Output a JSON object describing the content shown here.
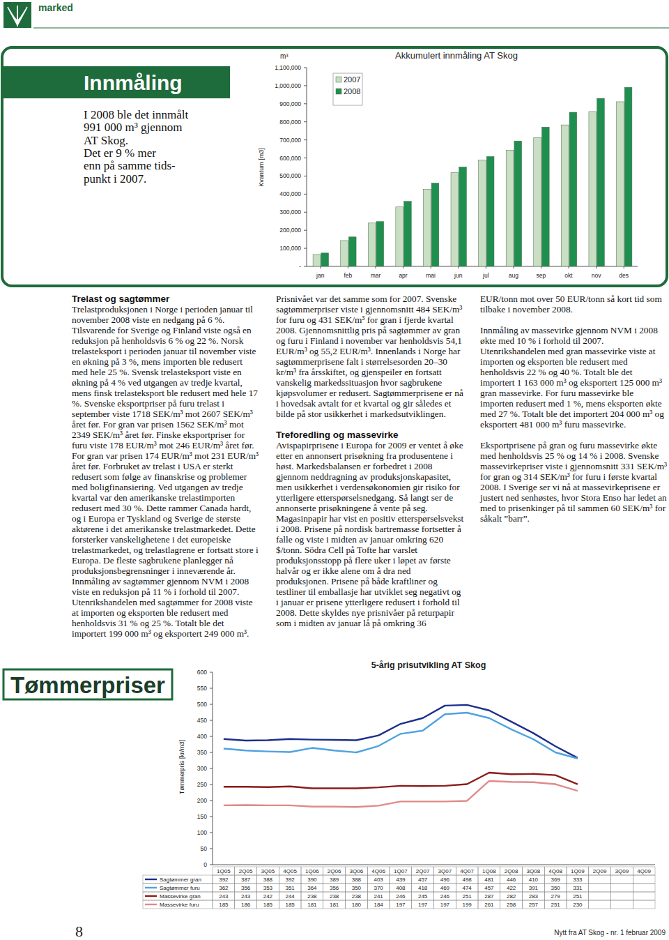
{
  "header": {
    "section": "marked"
  },
  "sidebar": {
    "title": "Innmåling",
    "lines": [
      "I 2008 ble det innmålt",
      "991 000 m³ gjennom",
      "AT Skog.",
      "Det er 9 % mer",
      "enn på samme tids-",
      "punkt i 2007."
    ]
  },
  "chart_data": [
    {
      "type": "bar",
      "title": "Akkumulert innmåling AT Skog",
      "unit_label": "m³",
      "y_label": "Kvantum [m3]",
      "categories": [
        "jan",
        "feb",
        "mar",
        "apr",
        "mai",
        "jun",
        "jul",
        "aug",
        "sep",
        "okt",
        "nov",
        "des"
      ],
      "series": [
        {
          "name": "2007",
          "color": "#c9dfc4",
          "values": [
            66000,
            143000,
            240000,
            329000,
            426000,
            519000,
            589000,
            643000,
            713000,
            783000,
            857000,
            911000
          ]
        },
        {
          "name": "2008",
          "color": "#1f8f50",
          "values": [
            74000,
            163000,
            248000,
            360000,
            461000,
            550000,
            608000,
            694000,
            771000,
            853000,
            930000,
            991000
          ]
        }
      ],
      "ylim": [
        0,
        1100000
      ],
      "yticks": [
        {
          "value": 0,
          "label": "-"
        },
        {
          "value": 100000,
          "label": "100,000"
        },
        {
          "value": 200000,
          "label": "200,000"
        },
        {
          "value": 300000,
          "label": "300,000"
        },
        {
          "value": 400000,
          "label": "400,000"
        },
        {
          "value": 500000,
          "label": "500,000"
        },
        {
          "value": 600000,
          "label": "600,000"
        },
        {
          "value": 700000,
          "label": "700,000"
        },
        {
          "value": 800000,
          "label": "800,000"
        },
        {
          "value": 900000,
          "label": "900,000"
        },
        {
          "value": 1000000,
          "label": "1,000,000"
        },
        {
          "value": 1100000,
          "label": "1,100,000"
        }
      ],
      "grid": false,
      "legend": "top-left"
    },
    {
      "type": "line",
      "title": "5-årig prisutvikling AT Skog",
      "y_label": "Tømmerpris [kr/m3]",
      "categories": [
        "1Q05",
        "2Q05",
        "3Q05",
        "4Q05",
        "1Q06",
        "2Q06",
        "3Q06",
        "4Q06",
        "1Q07",
        "2Q07",
        "3Q07",
        "4Q07",
        "1Q08",
        "2Q08",
        "3Q08",
        "4Q08",
        "1Q09",
        "2Q09",
        "3Q09",
        "4Q09"
      ],
      "series": [
        {
          "name": "Sagtømmer gran",
          "color": "#1c2f8a",
          "values": [
            392,
            387,
            388,
            392,
            390,
            389,
            388,
            403,
            439,
            457,
            496,
            498,
            481,
            446,
            410,
            369,
            333,
            null,
            null,
            null
          ]
        },
        {
          "name": "Sagtømmer furu",
          "color": "#4ea3e0",
          "values": [
            362,
            356,
            353,
            351,
            364,
            356,
            350,
            370,
            408,
            418,
            469,
            474,
            457,
            422,
            391,
            350,
            331,
            null,
            null,
            null
          ]
        },
        {
          "name": "Massevirke gran",
          "color": "#8a1c1c",
          "values": [
            243,
            243,
            242,
            244,
            238,
            238,
            238,
            241,
            246,
            245,
            246,
            251,
            287,
            282,
            283,
            279,
            251,
            null,
            null,
            null
          ]
        },
        {
          "name": "Massevirke furu",
          "color": "#e08a8a",
          "values": [
            185,
            186,
            185,
            185,
            181,
            181,
            180,
            184,
            197,
            197,
            197,
            199,
            261,
            258,
            257,
            251,
            230,
            null,
            null,
            null
          ]
        }
      ],
      "ylim": [
        0,
        600
      ],
      "yticks": [
        0,
        50,
        100,
        150,
        200,
        250,
        300,
        350,
        400,
        450,
        500,
        550,
        600
      ],
      "grid": false,
      "legend": "bottom"
    }
  ],
  "article": {
    "sections": [
      {
        "heading": "Trelast og sagtømmer",
        "paragraphs": [
          "Trelastproduksjonen i Norge i perioden januar til november 2008 viste en nedgang på 6 %. Tilsvarende for Sverige og Finland viste også en reduksjon på henholdsvis 6 % og 22 %. Norsk trelasteksport i perioden januar til november viste en økning på 3 %, mens importen ble redusert med hele 25 %. Svensk trelasteksport viste en økning på 4 % ved utgangen av tredje kvartal, mens finsk trelasteksport ble redusert med hele 17 %. Svenske eksportpriser på furu trelast i september viste 1718 SEK/m³ mot 2607 SEK/m³ året før. For gran var prisen 1562 SEK/m³ mot 2349 SEK/m³ året før. Finske eksportpriser for furu viste 178 EUR/m³ mot 246 EUR/m³ året før. For gran var prisen 174 EUR/m³ mot 231 EUR/m³ året før. Forbruket av trelast i USA er sterkt redusert som følge av finanskrise og problemer med boligfinansiering. Ved utgangen av tredje kvartal var den amerikanske trelastimporten redusert med 30 %. Dette rammer Canada hardt, og i Europa er Tyskland og Sverige de største aktørene i det amerikanske trelastmarkedet. Dette forsterker vanskelighetene i det europeiske trelastmarkedet, og trelastlagrene er fortsatt store i Europa. De fleste sagbrukene planlegger nå produksjonsbegrensninger i inneværende år.",
          "Innmåling av sagtømmer gjennom NVM i 2008 viste en reduksjon på 11 % i forhold til 2007. Utenrikshandelen med sagtømmer for 2008 viste at importen og eksporten ble redusert med henholdsvis 31 % og 25 %. Totalt ble det importert 199 000 m³ og eksportert 249 000 m³. Prisnivået var det samme som for 2007. Svenske sagtømmerpriser viste i gjennomsnitt 484 SEK/m³ for furu og 431 SEK/m³ for gran i fjerde kvartal 2008. Gjennomsnittlig pris på sagtømmer av gran og furu i Finland i november var henholdsvis 54,1 EUR/m³ og 55,2 EUR/m³. Innenlands i Norge har sagtømmerprisene falt i størrelsesorden 20–30 kr/m³ fra årsskiftet, og gjenspeiler en fortsatt vanskelig markedssituasjon hvor sagbrukene kjøpsvolumer er redusert. Sagtømmerprisene er nå i hovedsak avtalt for et kvartal og gir således et bilde på stor usikkerhet i markedsutviklingen."
        ]
      },
      {
        "heading": "Treforedling og massevirke",
        "paragraphs": [
          "Avispapirprisene i Europa for 2009 er ventet å øke etter en annonsert prisøkning fra produsentene i høst. Markedsbalansen er forbedret i 2008 gjennom neddragning av produksjonskapasitet, men usikkerhet i verdensøkonomien gir risiko for ytterligere etterspørselsnedgang. Så langt ser de annonserte prisøkningene å vente på seg. Magasinpapir har vist en positiv etterspørselsvekst i 2008. Prisene på nordisk bartremasse fortsetter å falle og viste i midten av januar omkring 620 $/tonn. Södra Cell på Tofte har varslet produksjonsstopp på flere uker i løpet av første halvår og er ikke alene om å dra ned produksjonen. Prisene på både kraftliner og testliner til emballasje har utviklet seg negativt og i januar er prisene ytterligere redusert i forhold til 2008. Dette skyldes nye prisnivåer på returpapir som i midten av januar lå på omkring 36 EUR/tonn mot over 50 EUR/tonn så kort tid som tilbake i november 2008.",
          "Innmåling av massevirke gjennom NVM i 2008 økte med 10 % i forhold til 2007. Utenrikshandelen med gran massevirke viste at importen og eksporten ble redusert med henholdsvis 22 % og 40 %. Totalt ble det importert 1 163 000 m³ og eksportert 125 000 m³ gran massevirke. For furu massevirke ble importen redusert med 1 %, mens eksporten økte med 27 %. Totalt ble det importert 204 000 m³ og eksportert 481 000 m³ furu massevirke.",
          "Eksportprisene på gran og furu massevirke økte med henholdsvis 25 % og 14 % i 2008. Svenske massevirkepriser viste i gjennomsnitt 331 SEK/m³ for gran og 314 SEK/m³ for furu i første kvartal 2008. I Sverige ser vi nå at massevirkeprisene er justert ned senhøstes, hvor Stora Enso har ledet an med to prisenkinger på til sammen 60 SEK/m³ for såkalt ”barr”."
        ]
      }
    ]
  },
  "prices_section": {
    "title": "Tømmerpriser"
  },
  "footer": {
    "page": "8",
    "publication": "Nytt fra AT Skog - nr. 1 februar 2009"
  }
}
